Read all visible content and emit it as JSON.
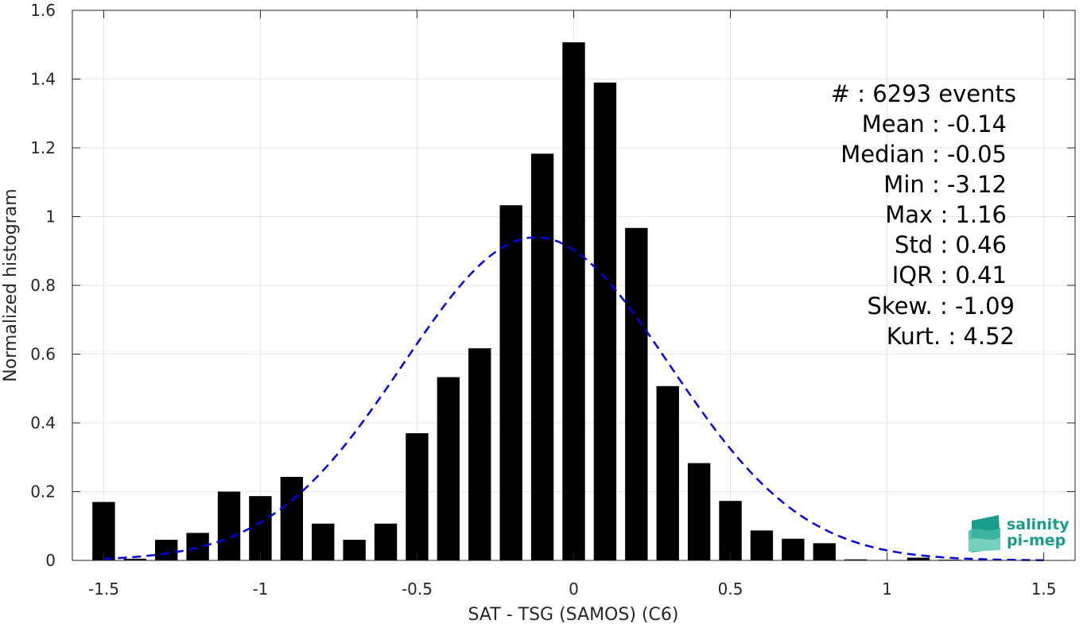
{
  "chart_data": {
    "type": "bar",
    "title": "",
    "xlabel": "SAT - TSG (SAMOS) (C6)",
    "ylabel": "Normalized histogram",
    "xlim": [
      -1.6,
      1.6
    ],
    "ylim": [
      0,
      1.6
    ],
    "grid": true,
    "x_ticks": [
      -1.5,
      -1,
      -0.5,
      0,
      0.5,
      1,
      1.5
    ],
    "x_tick_labels": [
      "-1.5",
      "-1",
      "-0.5",
      "0",
      "0.5",
      "1",
      "1.5"
    ],
    "y_ticks": [
      0,
      0.2,
      0.4,
      0.6,
      0.8,
      1,
      1.2,
      1.4,
      1.6
    ],
    "y_tick_labels": [
      "0",
      "0.2",
      "0.4",
      "0.6",
      "0.8",
      "1",
      "1.2",
      "1.4",
      "1.6"
    ],
    "bin_width": 0.1,
    "bar_color": "#000000",
    "curve_color": "#0000e0",
    "bins": [
      {
        "x": -1.5,
        "value": 0.17
      },
      {
        "x": -1.4,
        "value": 0.005
      },
      {
        "x": -1.3,
        "value": 0.06
      },
      {
        "x": -1.2,
        "value": 0.08
      },
      {
        "x": -1.1,
        "value": 0.2
      },
      {
        "x": -1.0,
        "value": 0.187
      },
      {
        "x": -0.9,
        "value": 0.243
      },
      {
        "x": -0.8,
        "value": 0.107
      },
      {
        "x": -0.7,
        "value": 0.06
      },
      {
        "x": -0.6,
        "value": 0.107
      },
      {
        "x": -0.5,
        "value": 0.37
      },
      {
        "x": -0.4,
        "value": 0.533
      },
      {
        "x": -0.3,
        "value": 0.617
      },
      {
        "x": -0.2,
        "value": 1.033
      },
      {
        "x": -0.1,
        "value": 1.183
      },
      {
        "x": 0.0,
        "value": 1.507
      },
      {
        "x": 0.1,
        "value": 1.39
      },
      {
        "x": 0.2,
        "value": 0.967
      },
      {
        "x": 0.3,
        "value": 0.507
      },
      {
        "x": 0.4,
        "value": 0.283
      },
      {
        "x": 0.5,
        "value": 0.173
      },
      {
        "x": 0.6,
        "value": 0.087
      },
      {
        "x": 0.7,
        "value": 0.063
      },
      {
        "x": 0.8,
        "value": 0.05
      },
      {
        "x": 0.9,
        "value": 0.003
      },
      {
        "x": 1.0,
        "value": 0.0
      },
      {
        "x": 1.1,
        "value": 0.008
      },
      {
        "x": 1.2,
        "value": 0.002
      },
      {
        "x": 1.3,
        "value": 0.0
      },
      {
        "x": 1.4,
        "value": 0.0
      },
      {
        "x": 1.5,
        "value": 0.0
      }
    ],
    "fit_curve": {
      "style": "dashed",
      "mean": -0.12,
      "std": 0.425,
      "peak": 0.94,
      "x_range": [
        -1.5,
        1.5
      ]
    }
  },
  "stats": {
    "lines": [
      "#  : 6293 events",
      "Mean : -0.14",
      "Median : -0.05",
      "Min : -3.12",
      "Max : 1.16",
      "Std : 0.46",
      "IQR : 0.41",
      "Skew. : -1.09",
      "Kurt. : 4.52"
    ]
  },
  "logo": {
    "line1": "salinity",
    "line2": "pi-mep",
    "color": "#1a9c8c"
  }
}
